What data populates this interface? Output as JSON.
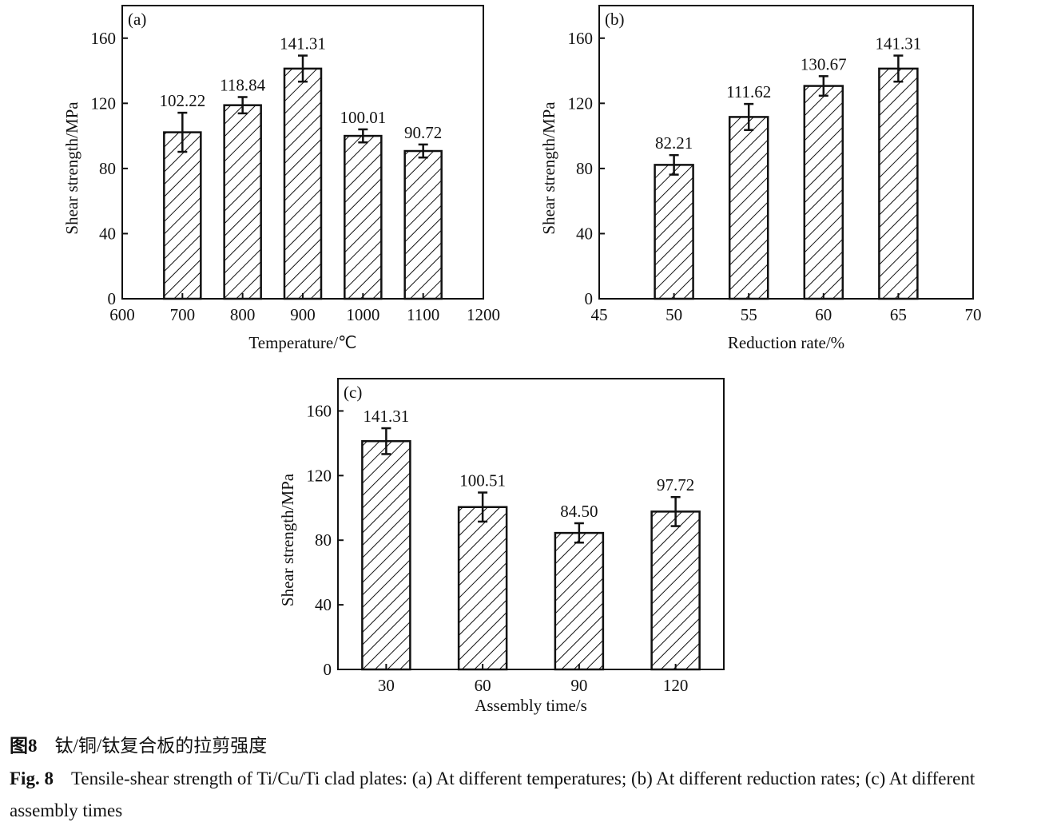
{
  "chart_data": [
    {
      "type": "bar",
      "panel_label": "(a)",
      "xlabel": "Temperature/℃",
      "ylabel": "Shear strength/MPa",
      "x_numeric": true,
      "xlim": [
        600,
        1200
      ],
      "xticks": [
        600,
        700,
        800,
        900,
        1000,
        1100,
        1200
      ],
      "ylim": [
        0,
        180
      ],
      "yticks": [
        0,
        40,
        80,
        120,
        160
      ],
      "categories": [
        700,
        800,
        900,
        1000,
        1100
      ],
      "values": [
        102.22,
        118.84,
        141.31,
        100.01,
        90.72
      ],
      "data_labels": [
        "102.22",
        "118.84",
        "141.31",
        "100.01",
        "90.72"
      ],
      "errors": [
        12,
        5,
        8,
        4,
        4
      ],
      "grid": false,
      "bar_fill": "hatched"
    },
    {
      "type": "bar",
      "panel_label": "(b)",
      "xlabel": "Reduction rate/%",
      "ylabel": "Shear strength/MPa",
      "x_numeric": true,
      "xlim": [
        45,
        70
      ],
      "xticks": [
        45,
        50,
        55,
        60,
        65,
        70
      ],
      "ylim": [
        0,
        180
      ],
      "yticks": [
        0,
        40,
        80,
        120,
        160
      ],
      "categories": [
        50,
        55,
        60,
        65
      ],
      "values": [
        82.21,
        111.62,
        130.67,
        141.31
      ],
      "data_labels": [
        "82.21",
        "111.62",
        "130.67",
        "141.31"
      ],
      "errors": [
        6,
        8,
        6,
        8
      ],
      "grid": false,
      "bar_fill": "hatched"
    },
    {
      "type": "bar",
      "panel_label": "(c)",
      "xlabel": "Assembly time/s",
      "ylabel": "Shear strength/MPa",
      "x_numeric": false,
      "xticks": [
        30,
        60,
        90,
        120
      ],
      "ylim": [
        0,
        180
      ],
      "yticks": [
        0,
        40,
        80,
        120,
        160
      ],
      "categories": [
        30,
        60,
        90,
        120
      ],
      "values": [
        141.31,
        100.51,
        84.5,
        97.72
      ],
      "data_labels": [
        "141.31",
        "100.51",
        "84.50",
        "97.72"
      ],
      "errors": [
        8,
        9,
        6,
        9
      ],
      "grid": false,
      "bar_fill": "hatched"
    }
  ],
  "caption": {
    "cn_label": "图8",
    "cn_text": "钛/铜/钛复合板的拉剪强度",
    "en_label": "Fig. 8",
    "en_text": "Tensile-shear strength of Ti/Cu/Ti clad plates: (a) At different temperatures; (b) At different reduction rates; (c) At different assembly times"
  }
}
